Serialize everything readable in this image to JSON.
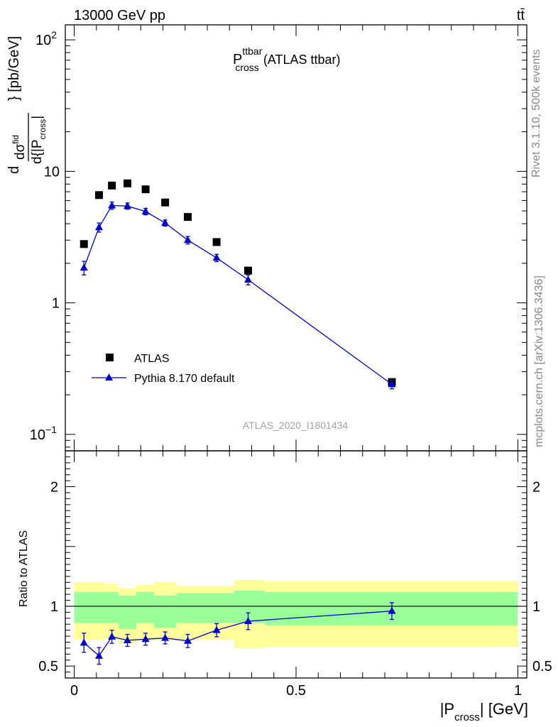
{
  "header": {
    "beam": "13000 GeV pp",
    "process": "tt̄"
  },
  "side_labels": {
    "rivet": "Rivet 3.1.10,  500k events",
    "mcplots": "mcplots.cern.ch [arXiv:1306.3436]"
  },
  "analysis_id": "ATLAS_2020_I1801434",
  "colors": {
    "data": "#000000",
    "mc": "#0000cc",
    "band_inner": "#99ff99",
    "band_outer": "#ffff99"
  },
  "chart_data": [
    {
      "type": "scatter",
      "title": "P_cross^ttbar (ATLAS ttbar)",
      "title_parts": {
        "main": "P",
        "sup": "ttbar",
        "sub": "cross",
        "suffix": "(ATLAS ttbar)"
      },
      "ylabel": "d σ^fid / d{|P_cross|} [pb/GeV]",
      "ylabel_parts": {
        "unit": "} [pb/GeV]"
      },
      "yscale": "log",
      "ylim": [
        0.075,
        130
      ],
      "xlim": [
        -0.02,
        1.02
      ],
      "y_ticks": [
        {
          "value": 0.1,
          "label": "10",
          "sup": "−1"
        },
        {
          "value": 1,
          "label": "1",
          "sup": ""
        },
        {
          "value": 10,
          "label": "10",
          "sup": ""
        },
        {
          "value": 100,
          "label": "10",
          "sup": "2"
        }
      ],
      "legend_position": "bottom-left",
      "series": [
        {
          "name": "ATLAS",
          "marker": "square",
          "x": [
            0.022,
            0.056,
            0.085,
            0.12,
            0.161,
            0.205,
            0.256,
            0.321,
            0.392,
            0.716
          ],
          "y": [
            2.8,
            6.6,
            7.8,
            8.1,
            7.3,
            5.8,
            4.5,
            2.9,
            1.76,
            0.25
          ]
        },
        {
          "name": "Pythia 8.170 default",
          "marker": "triangle",
          "line": true,
          "x": [
            0.022,
            0.056,
            0.085,
            0.12,
            0.161,
            0.205,
            0.256,
            0.321,
            0.392,
            0.716
          ],
          "y": [
            1.85,
            3.75,
            5.5,
            5.45,
            4.95,
            4.05,
            3.0,
            2.2,
            1.5,
            0.24
          ],
          "yerr": [
            0.22,
            0.3,
            0.35,
            0.3,
            0.28,
            0.22,
            0.2,
            0.14,
            0.13,
            0.018
          ]
        }
      ]
    },
    {
      "type": "scatter",
      "xlabel": "|P_cross| [GeV]",
      "xlabel_parts": {
        "pre": "|P",
        "sub": "cross",
        "post": "| [GeV]"
      },
      "ylabel": "Ratio to ATLAS",
      "ylim": [
        0.4,
        2.3
      ],
      "xlim": [
        -0.02,
        1.02
      ],
      "x_ticks": [
        {
          "value": 0,
          "label": "0"
        },
        {
          "value": 0.5,
          "label": "0.5"
        },
        {
          "value": 1,
          "label": "1"
        }
      ],
      "y_ticks": [
        {
          "value": 0.5,
          "label": "0.5"
        },
        {
          "value": 1,
          "label": "1"
        },
        {
          "value": 2,
          "label": "2"
        }
      ],
      "bands": {
        "edges": [
          0,
          0.07,
          0.1,
          0.14,
          0.18,
          0.23,
          0.36,
          0.43,
          1.0
        ],
        "inner_lo": [
          0.86,
          0.86,
          0.81,
          0.86,
          0.82,
          0.86,
          0.86,
          0.84
        ],
        "inner_hi": [
          1.12,
          1.12,
          1.09,
          1.12,
          1.09,
          1.11,
          1.13,
          1.12
        ],
        "outer_lo": [
          0.72,
          0.73,
          0.69,
          0.72,
          0.72,
          0.72,
          0.65,
          0.66
        ],
        "outer_hi": [
          1.2,
          1.19,
          1.15,
          1.18,
          1.2,
          1.17,
          1.22,
          1.21
        ]
      },
      "series": [
        {
          "name": "Pythia 8.170 default",
          "marker": "triangle",
          "line": true,
          "x": [
            0.022,
            0.056,
            0.085,
            0.12,
            0.161,
            0.205,
            0.256,
            0.321,
            0.392,
            0.716
          ],
          "y": [
            0.695,
            0.585,
            0.745,
            0.715,
            0.725,
            0.735,
            0.71,
            0.8,
            0.875,
            0.96
          ],
          "yerr": [
            0.08,
            0.07,
            0.055,
            0.05,
            0.05,
            0.05,
            0.055,
            0.055,
            0.07,
            0.07
          ]
        }
      ]
    }
  ]
}
